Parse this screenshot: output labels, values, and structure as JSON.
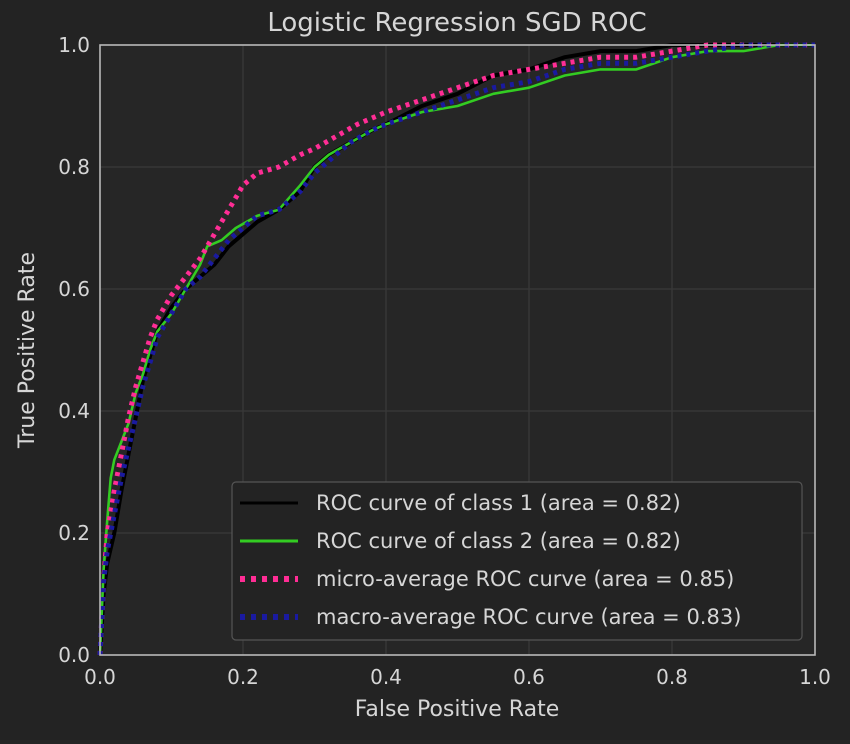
{
  "chart_data": {
    "type": "line",
    "title": "Logistic Regression SGD ROC",
    "xlabel": "False Positive Rate",
    "ylabel": "True Positive Rate",
    "xlim": [
      0.0,
      1.0
    ],
    "ylim": [
      0.0,
      1.0
    ],
    "xticks": [
      "0.0",
      "0.2",
      "0.4",
      "0.6",
      "0.8",
      "1.0"
    ],
    "yticks": [
      "0.0",
      "0.2",
      "0.4",
      "0.6",
      "0.8",
      "1.0"
    ],
    "grid": true,
    "legend_position": "lower right",
    "background_color": "#262626",
    "series": [
      {
        "name": "ROC curve of class 1 (area = 0.82)",
        "color": "#000000",
        "style": "solid",
        "x": [
          0.0,
          0.005,
          0.01,
          0.02,
          0.03,
          0.04,
          0.05,
          0.06,
          0.07,
          0.08,
          0.1,
          0.12,
          0.14,
          0.16,
          0.18,
          0.2,
          0.22,
          0.25,
          0.28,
          0.3,
          0.32,
          0.35,
          0.38,
          0.4,
          0.45,
          0.5,
          0.55,
          0.6,
          0.65,
          0.7,
          0.75,
          0.8,
          0.85,
          0.9,
          0.95,
          1.0
        ],
        "y": [
          0.0,
          0.1,
          0.15,
          0.2,
          0.27,
          0.33,
          0.39,
          0.45,
          0.49,
          0.53,
          0.57,
          0.6,
          0.62,
          0.64,
          0.67,
          0.69,
          0.71,
          0.73,
          0.76,
          0.8,
          0.82,
          0.84,
          0.86,
          0.87,
          0.9,
          0.92,
          0.95,
          0.96,
          0.98,
          0.99,
          0.99,
          1.0,
          1.0,
          1.0,
          1.0,
          1.0
        ]
      },
      {
        "name": "ROC curve of class 2 (area = 0.82)",
        "color": "#33cc22",
        "style": "solid",
        "x": [
          0.0,
          0.005,
          0.01,
          0.015,
          0.02,
          0.03,
          0.04,
          0.05,
          0.06,
          0.07,
          0.08,
          0.1,
          0.12,
          0.14,
          0.15,
          0.17,
          0.19,
          0.22,
          0.25,
          0.28,
          0.3,
          0.32,
          0.35,
          0.38,
          0.4,
          0.45,
          0.5,
          0.55,
          0.6,
          0.65,
          0.7,
          0.75,
          0.8,
          0.85,
          0.9,
          0.95,
          1.0
        ],
        "y": [
          0.0,
          0.14,
          0.22,
          0.29,
          0.32,
          0.35,
          0.38,
          0.43,
          0.46,
          0.5,
          0.53,
          0.56,
          0.6,
          0.64,
          0.67,
          0.68,
          0.7,
          0.72,
          0.73,
          0.77,
          0.8,
          0.82,
          0.84,
          0.86,
          0.87,
          0.89,
          0.9,
          0.92,
          0.93,
          0.95,
          0.96,
          0.96,
          0.98,
          0.99,
          0.99,
          1.0,
          1.0
        ]
      },
      {
        "name": "micro-average ROC curve (area = 0.85)",
        "color": "#ff2d95",
        "style": "dotted",
        "x": [
          0.0,
          0.005,
          0.01,
          0.02,
          0.03,
          0.04,
          0.05,
          0.06,
          0.07,
          0.08,
          0.1,
          0.12,
          0.14,
          0.16,
          0.18,
          0.2,
          0.22,
          0.25,
          0.28,
          0.3,
          0.33,
          0.36,
          0.4,
          0.45,
          0.5,
          0.55,
          0.6,
          0.65,
          0.7,
          0.75,
          0.8,
          0.85,
          0.9,
          0.95,
          1.0
        ],
        "y": [
          0.0,
          0.12,
          0.2,
          0.27,
          0.33,
          0.39,
          0.44,
          0.48,
          0.52,
          0.55,
          0.59,
          0.62,
          0.65,
          0.69,
          0.73,
          0.77,
          0.79,
          0.8,
          0.82,
          0.83,
          0.85,
          0.87,
          0.89,
          0.91,
          0.93,
          0.95,
          0.96,
          0.97,
          0.98,
          0.98,
          0.99,
          1.0,
          1.0,
          1.0,
          1.0
        ]
      },
      {
        "name": "macro-average ROC curve (area = 0.83)",
        "color": "#1a1aa0",
        "style": "dotted",
        "x": [
          0.0,
          0.005,
          0.01,
          0.02,
          0.03,
          0.04,
          0.05,
          0.06,
          0.07,
          0.08,
          0.1,
          0.12,
          0.14,
          0.16,
          0.18,
          0.2,
          0.22,
          0.25,
          0.28,
          0.3,
          0.32,
          0.35,
          0.38,
          0.4,
          0.45,
          0.5,
          0.55,
          0.6,
          0.65,
          0.7,
          0.75,
          0.8,
          0.85,
          0.9,
          0.95,
          1.0
        ],
        "y": [
          0.0,
          0.12,
          0.17,
          0.23,
          0.29,
          0.34,
          0.39,
          0.44,
          0.48,
          0.52,
          0.56,
          0.6,
          0.62,
          0.65,
          0.68,
          0.7,
          0.72,
          0.73,
          0.76,
          0.79,
          0.81,
          0.84,
          0.86,
          0.87,
          0.89,
          0.91,
          0.93,
          0.94,
          0.96,
          0.97,
          0.97,
          0.98,
          0.99,
          1.0,
          1.0,
          1.0
        ]
      }
    ]
  }
}
